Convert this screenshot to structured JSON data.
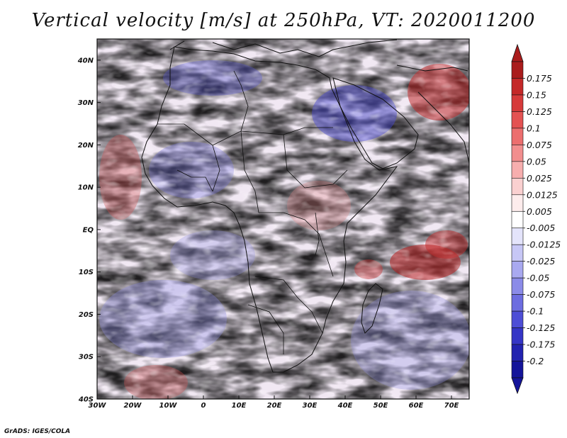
{
  "title": "Vertical velocity [m/s] at 250hPa, VT: 2020011200",
  "credit": "GrADS: IGES/COLA",
  "map": {
    "region": "Africa",
    "variable": "Vertical velocity",
    "units": "m/s",
    "level": "250hPa",
    "valid_time": "2020011200",
    "lon_range": [
      -30,
      75
    ],
    "lat_range": [
      -40,
      45
    ],
    "x_ticks": [
      "30W",
      "20W",
      "10W",
      "0",
      "10E",
      "20E",
      "30E",
      "40E",
      "50E",
      "60E",
      "70E"
    ],
    "y_ticks": [
      "40N",
      "30N",
      "20N",
      "10N",
      "EQ",
      "10S",
      "20S",
      "30S",
      "40S"
    ]
  },
  "colorbar": {
    "labels": [
      "0.175",
      "0.15",
      "0.125",
      "0.1",
      "0.075",
      "0.05",
      "0.025",
      "0.0125",
      "0.005",
      "-0.005",
      "-0.0125",
      "-0.025",
      "-0.05",
      "-0.075",
      "-0.1",
      "-0.125",
      "-0.175",
      "-0.2"
    ],
    "colors": [
      "#aa1c1c",
      "#c42828",
      "#d63a3a",
      "#e45252",
      "#ec6e6e",
      "#f28e8e",
      "#f7aeae",
      "#fad0d0",
      "#fdecec",
      "#ffffff",
      "#e4e4fb",
      "#c7c7f6",
      "#a9a9f0",
      "#8b8be8",
      "#6d6de0",
      "#4e4ed6",
      "#3535c6",
      "#2222b0",
      "#14149a"
    ],
    "over_color": "#aa1c1c",
    "under_color": "#14149a"
  }
}
